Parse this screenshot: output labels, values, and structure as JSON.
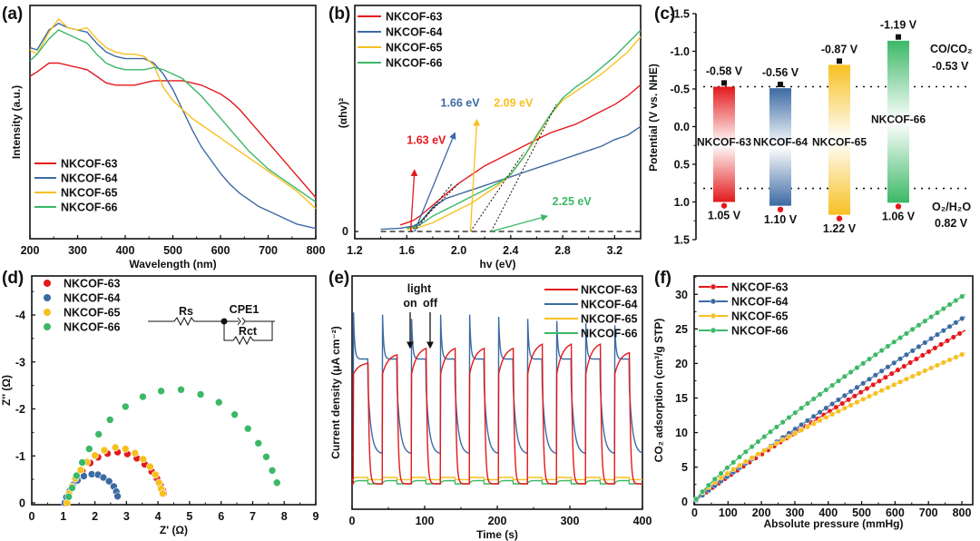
{
  "colors": {
    "NKCOF-63": "#e3191c",
    "NKCOF-64": "#3c6aa3",
    "NKCOF-65": "#f7c021",
    "NKCOF-66": "#3cb867"
  },
  "chart_data": [
    {
      "panel": "(a)",
      "type": "line",
      "title": "",
      "xlabel": "Wavelength (nm)",
      "ylabel": "Intensity (a.u.)",
      "xlim": [
        200,
        800
      ],
      "ylim": [
        0,
        1
      ],
      "xticks": [
        "200",
        "300",
        "400",
        "500",
        "600",
        "700",
        "800"
      ],
      "legend": "bottom-left",
      "y_tick_labels": false,
      "x": [
        200,
        215,
        240,
        260,
        280,
        300,
        320,
        340,
        360,
        380,
        400,
        420,
        440,
        460,
        480,
        500,
        520,
        540,
        560,
        580,
        600,
        620,
        640,
        660,
        680,
        700,
        720,
        740,
        760,
        780,
        800
      ],
      "series": [
        {
          "name": "NKCOF-63",
          "values": [
            0.72,
            0.74,
            0.78,
            0.78,
            0.77,
            0.76,
            0.75,
            0.72,
            0.69,
            0.68,
            0.68,
            0.68,
            0.69,
            0.7,
            0.7,
            0.7,
            0.7,
            0.69,
            0.68,
            0.66,
            0.64,
            0.61,
            0.57,
            0.52,
            0.47,
            0.42,
            0.37,
            0.32,
            0.27,
            0.22,
            0.17
          ]
        },
        {
          "name": "NKCOF-64",
          "values": [
            0.85,
            0.84,
            0.93,
            0.96,
            0.94,
            0.93,
            0.92,
            0.87,
            0.83,
            0.81,
            0.8,
            0.8,
            0.8,
            0.78,
            0.73,
            0.66,
            0.57,
            0.48,
            0.4,
            0.34,
            0.28,
            0.23,
            0.19,
            0.16,
            0.13,
            0.11,
            0.09,
            0.07,
            0.05,
            0.04,
            0.03
          ]
        },
        {
          "name": "NKCOF-65",
          "values": [
            0.84,
            0.82,
            0.92,
            0.98,
            0.94,
            0.93,
            0.94,
            0.89,
            0.85,
            0.83,
            0.82,
            0.82,
            0.81,
            0.77,
            0.67,
            0.61,
            0.57,
            0.53,
            0.5,
            0.47,
            0.44,
            0.41,
            0.38,
            0.35,
            0.32,
            0.29,
            0.26,
            0.23,
            0.2,
            0.16,
            0.12
          ]
        },
        {
          "name": "NKCOF-66",
          "values": [
            0.79,
            0.82,
            0.89,
            0.93,
            0.91,
            0.89,
            0.87,
            0.82,
            0.78,
            0.76,
            0.75,
            0.75,
            0.75,
            0.76,
            0.75,
            0.73,
            0.71,
            0.67,
            0.63,
            0.58,
            0.53,
            0.48,
            0.43,
            0.38,
            0.34,
            0.3,
            0.27,
            0.24,
            0.21,
            0.18,
            0.15
          ]
        }
      ]
    },
    {
      "panel": "(b)",
      "type": "line",
      "title": "",
      "xlabel": "hv (eV)",
      "ylabel": "(αhv)²",
      "xlim": [
        1.2,
        3.4
      ],
      "ylim": [
        -0.02,
        1.0
      ],
      "xticks": [
        "1.2",
        "1.6",
        "2.0",
        "2.4",
        "2.8",
        "3.2"
      ],
      "yticks": [
        "0"
      ],
      "legend": "top-left",
      "x": [
        1.4,
        1.55,
        1.6,
        1.65,
        1.7,
        1.8,
        1.9,
        2.0,
        2.1,
        2.2,
        2.3,
        2.4,
        2.5,
        2.6,
        2.7,
        2.8,
        2.9,
        3.0,
        3.1,
        3.2,
        3.3,
        3.4
      ],
      "series": [
        {
          "name": "NKCOF-63",
          "values": [
            null,
            0.03,
            0.04,
            0.05,
            0.07,
            0.12,
            0.17,
            0.22,
            0.26,
            0.3,
            0.33,
            0.36,
            0.39,
            0.42,
            0.45,
            0.47,
            0.49,
            0.52,
            0.55,
            0.58,
            0.62,
            0.67
          ]
        },
        {
          "name": "NKCOF-64",
          "values": [
            0.01,
            0.015,
            0.02,
            0.025,
            0.04,
            0.11,
            0.15,
            0.17,
            0.19,
            0.21,
            0.23,
            0.25,
            0.27,
            0.29,
            0.31,
            0.33,
            0.35,
            0.37,
            0.39,
            0.42,
            0.44,
            0.48
          ]
        },
        {
          "name": "NKCOF-65",
          "values": [
            null,
            null,
            0.01,
            0.015,
            0.02,
            0.04,
            0.07,
            0.1,
            0.13,
            0.17,
            0.21,
            0.26,
            0.34,
            0.43,
            0.53,
            0.6,
            0.64,
            0.68,
            0.72,
            0.77,
            0.82,
            0.89
          ]
        },
        {
          "name": "NKCOF-66",
          "values": [
            null,
            null,
            0.015,
            0.02,
            0.03,
            0.07,
            0.1,
            0.13,
            0.16,
            0.19,
            0.22,
            0.26,
            0.34,
            0.44,
            0.53,
            0.61,
            0.66,
            0.7,
            0.75,
            0.8,
            0.86,
            0.92
          ]
        }
      ],
      "baseline": "dashed y=0",
      "tangents": [
        {
          "name": "NKCOF-63",
          "x0": 1.63,
          "x1": 2.0,
          "y1": 0.22
        },
        {
          "name": "NKCOF-64",
          "x0": 1.66,
          "x1": 1.95,
          "y1": 0.22
        },
        {
          "name": "NKCOF-65",
          "x0": 2.09,
          "x1": 2.5,
          "y1": 0.36
        },
        {
          "name": "NKCOF-66",
          "x0": 2.25,
          "x1": 2.75,
          "y1": 0.58
        }
      ],
      "annotations": [
        {
          "text": "1.63 eV",
          "series": "NKCOF-63",
          "at": [
            1.6,
            0.4
          ],
          "arrow_from": [
            1.63,
            0.0
          ],
          "arrow_to": [
            1.66,
            0.28
          ]
        },
        {
          "text": "1.66 eV",
          "series": "NKCOF-64",
          "at": [
            1.86,
            0.57
          ],
          "arrow_from": [
            1.66,
            0.0
          ],
          "arrow_to": [
            1.97,
            0.45
          ]
        },
        {
          "text": "2.09 eV",
          "series": "NKCOF-65",
          "at": [
            2.27,
            0.57
          ],
          "arrow_from": [
            2.09,
            0.0
          ],
          "arrow_to": [
            2.14,
            0.51
          ]
        },
        {
          "text": "2.25 eV",
          "series": "NKCOF-66",
          "at": [
            2.72,
            0.12
          ],
          "arrow_from": [
            2.25,
            0.0
          ],
          "arrow_to": [
            2.68,
            0.07
          ]
        }
      ]
    },
    {
      "panel": "(c)",
      "type": "bar",
      "title": "",
      "ylabel": "Potential (V vs. NHE)",
      "ylim": [
        -1.5,
        1.5
      ],
      "y_inverted": true,
      "yticks": [
        "-1.5",
        "-1.0",
        "-0.5",
        "0.0",
        "0.5",
        "1.0",
        "1.5"
      ],
      "categories": [
        "NKCOF-63",
        "NKCOF-64",
        "NKCOF-65",
        "NKCOF-66"
      ],
      "cb": [
        -0.58,
        -0.56,
        -0.87,
        -1.19
      ],
      "vb": [
        1.05,
        1.1,
        1.22,
        1.06
      ],
      "cb_labels": [
        "-0.58 V",
        "-0.56 V",
        "-0.87 V",
        "-1.19 V"
      ],
      "vb_labels": [
        "1.05 V",
        "1.10 V",
        "1.22 V",
        "1.06 V"
      ],
      "reference_lines": [
        {
          "label": "CO/CO₂",
          "value_label": "-0.53 V",
          "value": -0.53
        },
        {
          "label": "O₂/H₂O",
          "value_label": "0.82 V",
          "value": 0.82
        }
      ]
    },
    {
      "panel": "(d)",
      "type": "scatter",
      "title": "",
      "xlabel": "Z' (Ω)",
      "ylabel": "Z'' (Ω)",
      "xlim": [
        0,
        9
      ],
      "ylim": [
        0,
        -4.6
      ],
      "xticks": [
        "0",
        "1",
        "2",
        "3",
        "4",
        "5",
        "6",
        "7",
        "8",
        "9"
      ],
      "yticks": [
        "0",
        "-1",
        "-2",
        "-3",
        "-4"
      ],
      "legend": "top-left",
      "inset": {
        "labels": [
          "Rs",
          "CPE1",
          "Rct"
        ]
      },
      "series": [
        {
          "name": "NKCOF-63",
          "x": [
            1.08,
            1.15,
            1.25,
            1.4,
            1.6,
            1.85,
            2.1,
            2.4,
            2.72,
            3.03,
            3.33,
            3.58,
            3.8,
            3.97,
            4.08,
            4.15,
            4.18
          ],
          "y": [
            0.0,
            -0.15,
            -0.3,
            -0.48,
            -0.68,
            -0.85,
            -0.97,
            -1.05,
            -1.08,
            -1.04,
            -0.95,
            -0.82,
            -0.67,
            -0.52,
            -0.37,
            -0.27,
            -0.2
          ]
        },
        {
          "name": "NKCOF-64",
          "x": [
            1.05,
            1.1,
            1.2,
            1.3,
            1.45,
            1.65,
            1.9,
            2.1,
            2.27,
            2.45,
            2.6,
            2.68,
            2.72
          ],
          "y": [
            0.0,
            -0.12,
            -0.25,
            -0.38,
            -0.48,
            -0.57,
            -0.61,
            -0.6,
            -0.54,
            -0.46,
            -0.35,
            -0.24,
            -0.14
          ]
        },
        {
          "name": "NKCOF-65",
          "x": [
            1.12,
            1.18,
            1.27,
            1.38,
            1.55,
            1.75,
            2.0,
            2.3,
            2.65,
            2.97,
            3.27,
            3.53,
            3.75,
            3.92,
            4.03,
            4.1,
            4.15
          ],
          "y": [
            0.0,
            -0.2,
            -0.35,
            -0.52,
            -0.7,
            -0.87,
            -1.01,
            -1.12,
            -1.18,
            -1.15,
            -1.06,
            -0.93,
            -0.77,
            -0.6,
            -0.43,
            -0.3,
            -0.2
          ]
        },
        {
          "name": "NKCOF-66",
          "x": [
            1.17,
            1.28,
            1.42,
            1.6,
            1.82,
            2.12,
            2.48,
            2.97,
            3.52,
            4.1,
            4.73,
            5.35,
            5.93,
            6.43,
            6.85,
            7.18,
            7.43,
            7.62,
            7.77
          ],
          "y": [
            -0.13,
            -0.32,
            -0.58,
            -0.86,
            -1.15,
            -1.46,
            -1.77,
            -2.05,
            -2.26,
            -2.38,
            -2.41,
            -2.31,
            -2.14,
            -1.88,
            -1.58,
            -1.27,
            -0.98,
            -0.69,
            -0.43
          ]
        }
      ]
    },
    {
      "panel": "(e)",
      "type": "line",
      "title": "",
      "xlabel": "Time (s)",
      "ylabel": "Current density (μA cm⁻²)",
      "xlim": [
        0,
        400
      ],
      "ylim": [
        0,
        1
      ],
      "xticks": [
        "0",
        "100",
        "200",
        "300",
        "400"
      ],
      "y_tick_labels": false,
      "legend": "top-right",
      "light_on_times": [
        2,
        42,
        82,
        122,
        162,
        202,
        242,
        282,
        322,
        362
      ],
      "period_s": 40,
      "on_duration_s": 20,
      "annotations": [
        {
          "text": "light"
        },
        {
          "text": "on",
          "x": 80
        },
        {
          "text": "off",
          "x": 105
        }
      ],
      "series": [
        {
          "name": "NKCOF-63",
          "baseline": 0.06,
          "on_start": 0.58,
          "on_end": [
            0.63,
            0.67,
            0.7,
            0.7,
            0.7,
            0.7,
            0.72,
            0.72,
            0.72,
            0.68
          ]
        },
        {
          "name": "NKCOF-64",
          "baseline": 0.2,
          "spike": [
            0.87,
            0.86,
            0.84,
            0.86,
            0.86,
            0.85,
            0.84,
            0.83,
            0.82,
            0.81
          ],
          "plateau": 0.65
        },
        {
          "name": "NKCOF-65",
          "baseline": 0.08,
          "on_level": 0.09
        },
        {
          "name": "NKCOF-66",
          "baseline": 0.06,
          "on_level": 0.075
        }
      ]
    },
    {
      "panel": "(f)",
      "type": "line",
      "title": "",
      "xlabel": "Absolute pressure (mmHg)",
      "ylabel": "CO₂ adsorption (cm³/g STP)",
      "xlim": [
        0,
        820
      ],
      "ylim": [
        0,
        32
      ],
      "xticks": [
        "0",
        "100",
        "200",
        "300",
        "400",
        "500",
        "600",
        "700",
        "800"
      ],
      "yticks": [
        "0",
        "5",
        "10",
        "15",
        "20",
        "25",
        "30"
      ],
      "legend": "top-left",
      "series": [
        {
          "name": "NKCOF-63",
          "k": 0.0517,
          "n": 0.92,
          "end_value": 24.8
        },
        {
          "name": "NKCOF-64",
          "k": 0.0475,
          "n": 0.945,
          "end_value": 26.8
        },
        {
          "name": "NKCOF-65",
          "k": 0.1125,
          "n": 0.785,
          "end_value": 21.5
        },
        {
          "name": "NKCOF-66",
          "k": 0.0978,
          "n": 0.855,
          "end_value": 30.0
        }
      ]
    }
  ],
  "panel_labels": [
    "(a)",
    "(b)",
    "(c)",
    "(d)",
    "(e)",
    "(f)"
  ]
}
